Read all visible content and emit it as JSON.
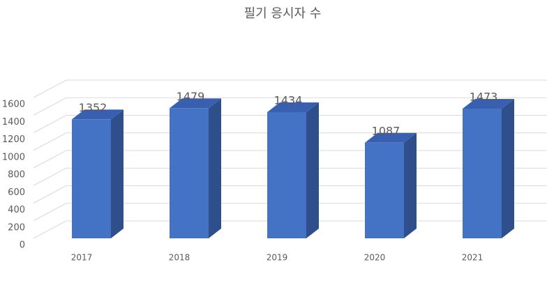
{
  "chart_data": {
    "type": "bar3d",
    "title": "필기 응시자 수",
    "categories": [
      "2017",
      "2018",
      "2019",
      "2020",
      "2021"
    ],
    "values": [
      1352,
      1479,
      1434,
      1087,
      1473
    ],
    "color": "#4472c4",
    "ylim": [
      0,
      1600
    ],
    "yticks": [
      0,
      200,
      400,
      600,
      800,
      1000,
      1200,
      1400,
      1600
    ],
    "grid": true
  }
}
